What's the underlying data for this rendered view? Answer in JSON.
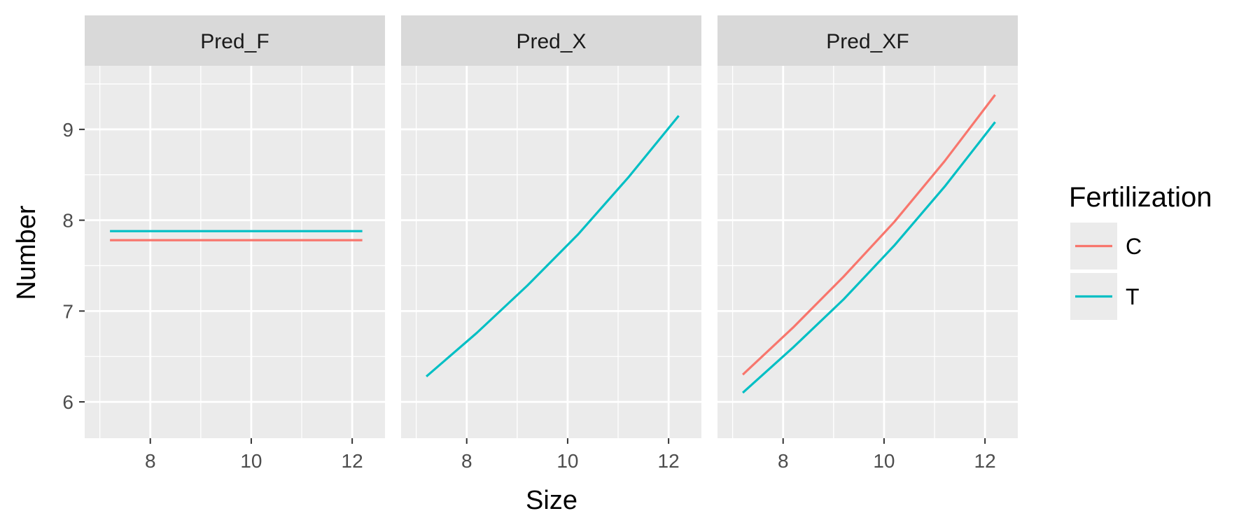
{
  "chart_data": {
    "type": "line",
    "xlabel": "Size",
    "ylabel": "Number",
    "xlim": [
      6.7,
      12.65
    ],
    "ylim": [
      5.6,
      9.7
    ],
    "x_ticks": [
      8,
      10,
      12
    ],
    "y_ticks": [
      6,
      7,
      8,
      9
    ],
    "grid": true,
    "legend": {
      "title": "Fertilization",
      "position": "right",
      "entries": [
        {
          "label": "C",
          "color": "#F8766D"
        },
        {
          "label": "T",
          "color": "#00BFC4"
        }
      ]
    },
    "panels": [
      {
        "title": "Pred_F",
        "series": [
          {
            "name": "C",
            "color": "#F8766D",
            "x": [
              7.2,
              12.2
            ],
            "y": [
              7.78,
              7.78
            ]
          },
          {
            "name": "T",
            "color": "#00BFC4",
            "x": [
              7.2,
              12.2
            ],
            "y": [
              7.88,
              7.88
            ]
          }
        ]
      },
      {
        "title": "Pred_X",
        "series": [
          {
            "name": "T",
            "color": "#00BFC4",
            "x": [
              7.2,
              8.2,
              9.2,
              10.2,
              11.2,
              12.2
            ],
            "y": [
              6.28,
              6.76,
              7.28,
              7.84,
              8.47,
              9.15
            ]
          }
        ]
      },
      {
        "title": "Pred_XF",
        "series": [
          {
            "name": "C",
            "color": "#F8766D",
            "x": [
              7.2,
              8.2,
              9.2,
              10.2,
              11.2,
              12.2
            ],
            "y": [
              6.3,
              6.82,
              7.38,
              7.98,
              8.65,
              9.38
            ]
          },
          {
            "name": "T",
            "color": "#00BFC4",
            "x": [
              7.2,
              8.2,
              9.2,
              10.2,
              11.2,
              12.2
            ],
            "y": [
              6.1,
              6.6,
              7.13,
              7.72,
              8.37,
              9.08
            ]
          }
        ]
      }
    ]
  }
}
